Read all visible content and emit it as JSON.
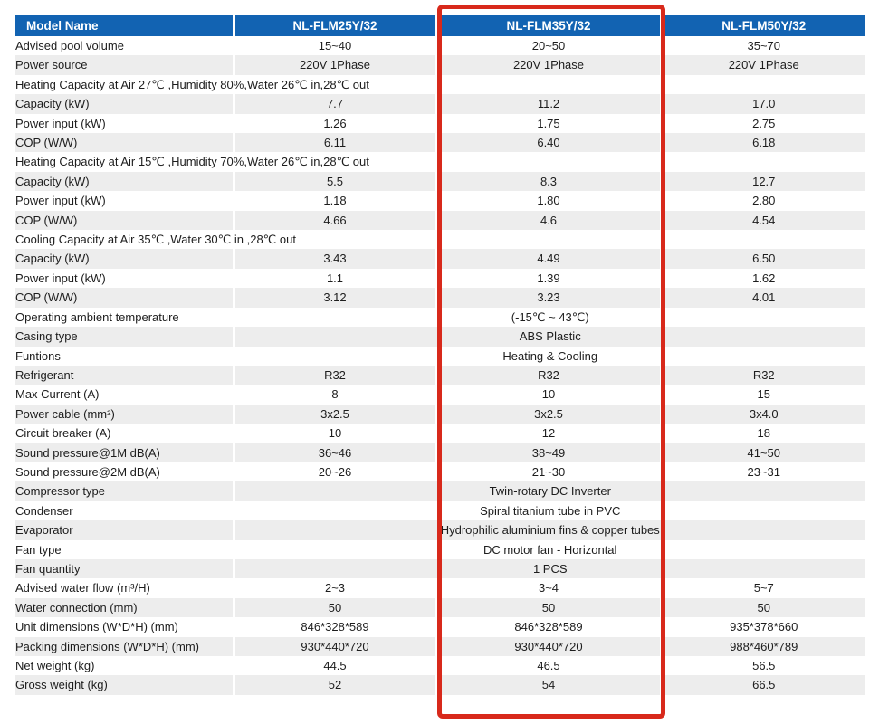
{
  "colors": {
    "header_bg": "#1263b2",
    "header_text": "#ffffff",
    "stripe": "#ededed",
    "highlight_red": "#d8291b"
  },
  "table": {
    "header": {
      "label": "Model Name",
      "models": [
        "NL-FLM25Y/32",
        "NL-FLM35Y/32",
        "NL-FLM50Y/32"
      ]
    },
    "rows": [
      {
        "type": "data",
        "label": "Advised pool volume",
        "values": [
          "15~40",
          "20~50",
          "35~70"
        ]
      },
      {
        "type": "data",
        "label": "Power source",
        "values": [
          "220V 1Phase",
          "220V 1Phase",
          "220V 1Phase"
        ]
      },
      {
        "type": "section",
        "label": "Heating Capacity at Air 27℃ ,Humidity 80%,Water 26℃ in,28℃ out"
      },
      {
        "type": "data",
        "label": "Capacity  (kW)",
        "values": [
          "7.7",
          "11.2",
          "17.0"
        ]
      },
      {
        "type": "data",
        "label": "Power input  (kW)",
        "values": [
          "1.26",
          "1.75",
          "2.75"
        ]
      },
      {
        "type": "data",
        "label": "COP (W/W)",
        "values": [
          "6.11",
          "6.40",
          "6.18"
        ]
      },
      {
        "type": "section",
        "label": "Heating Capacity at Air 15℃ ,Humidity 70%,Water 26℃ in,28℃ out"
      },
      {
        "type": "data",
        "label": "Capacity  (kW)",
        "values": [
          "5.5",
          "8.3",
          "12.7"
        ]
      },
      {
        "type": "data",
        "label": "Power input  (kW)",
        "values": [
          "1.18",
          "1.80",
          "2.80"
        ]
      },
      {
        "type": "data",
        "label": "COP (W/W)",
        "values": [
          "4.66",
          "4.6",
          "4.54"
        ]
      },
      {
        "type": "section",
        "label": "Cooling Capacity at Air 35℃ ,Water 30℃ in ,28℃ out"
      },
      {
        "type": "data",
        "label": "Capacity  (kW)",
        "values": [
          "3.43",
          "4.49",
          "6.50"
        ]
      },
      {
        "type": "data",
        "label": "Power input  (kW)",
        "values": [
          "1.1",
          "1.39",
          "1.62"
        ]
      },
      {
        "type": "data",
        "label": "COP (W/W)",
        "values": [
          "3.12",
          "3.23",
          "4.01"
        ]
      },
      {
        "type": "merged",
        "label": "Operating ambient temperature",
        "value": "(-15℃ ~ 43℃)"
      },
      {
        "type": "merged",
        "label": "Casing type",
        "value": "ABS Plastic"
      },
      {
        "type": "merged",
        "label": "Funtions",
        "value": "Heating & Cooling"
      },
      {
        "type": "data",
        "label": "Refrigerant",
        "values": [
          "R32",
          "R32",
          "R32"
        ]
      },
      {
        "type": "data",
        "label": "Max Current (A)",
        "values": [
          "8",
          "10",
          "15"
        ]
      },
      {
        "type": "data",
        "label": "Power cable (mm²)",
        "values": [
          "3x2.5",
          "3x2.5",
          "3x4.0"
        ]
      },
      {
        "type": "data",
        "label": "Circuit breaker (A)",
        "values": [
          "10",
          "12",
          "18"
        ]
      },
      {
        "type": "data",
        "label": "Sound pressure@1M dB(A)",
        "values": [
          "36~46",
          "38~49",
          "41~50"
        ]
      },
      {
        "type": "data",
        "label": "Sound pressure@2M dB(A)",
        "values": [
          "20~26",
          "21~30",
          "23~31"
        ]
      },
      {
        "type": "merged",
        "label": "Compressor type",
        "value": "Twin-rotary DC Inverter"
      },
      {
        "type": "merged",
        "label": "Condenser",
        "value": "Spiral titanium tube in PVC"
      },
      {
        "type": "merged",
        "label": "Evaporator",
        "value": "Hydrophilic aluminium fins & copper tubes"
      },
      {
        "type": "merged",
        "label": "Fan type",
        "value": "DC motor fan - Horizontal"
      },
      {
        "type": "merged",
        "label": "Fan quantity",
        "value": "1 PCS"
      },
      {
        "type": "data",
        "label": "Advised water flow (m³/H)",
        "values": [
          "2~3",
          "3~4",
          "5~7"
        ]
      },
      {
        "type": "data",
        "label": "Water connection (mm)",
        "values": [
          "50",
          "50",
          "50"
        ]
      },
      {
        "type": "data",
        "label": "Unit dimensions (W*D*H) (mm)",
        "values": [
          "846*328*589",
          "846*328*589",
          "935*378*660"
        ]
      },
      {
        "type": "data",
        "label": "Packing dimensions (W*D*H) (mm)",
        "values": [
          "930*440*720",
          "930*440*720",
          "988*460*789"
        ]
      },
      {
        "type": "data",
        "label": "Net weight  (kg)",
        "values": [
          "44.5",
          "46.5",
          "56.5"
        ]
      },
      {
        "type": "data",
        "label": "Gross weight  (kg)",
        "values": [
          "52",
          "54",
          "66.5"
        ]
      }
    ],
    "highlight": {
      "target_model": "NL-FLM35Y/32"
    }
  }
}
